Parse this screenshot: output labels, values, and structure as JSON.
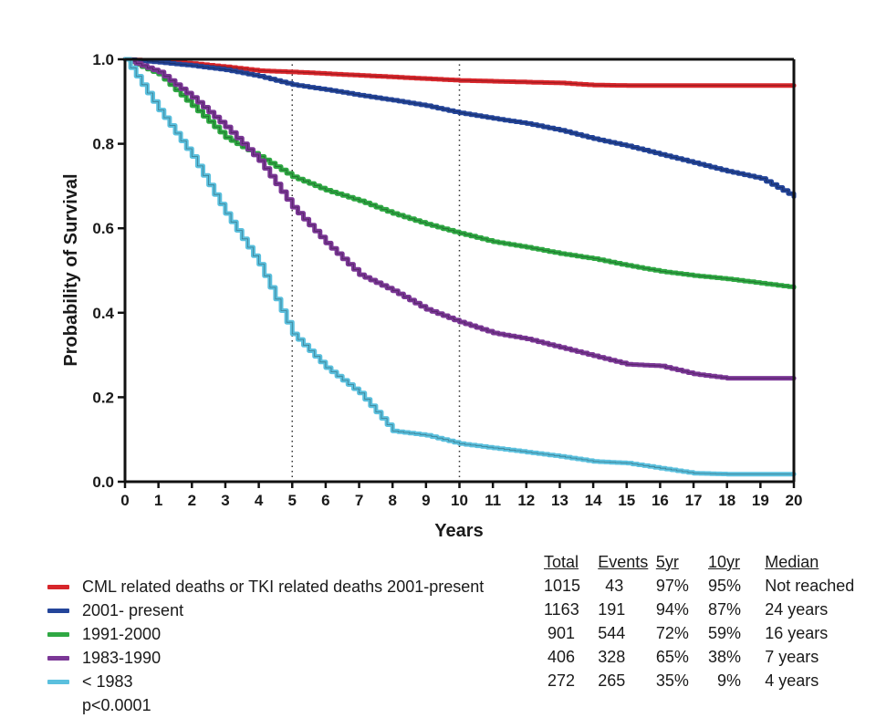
{
  "chart_data": {
    "type": "line",
    "title": "",
    "xlabel": "Years",
    "ylabel": "Probability of Survival",
    "xlim": [
      0,
      20
    ],
    "ylim": [
      0,
      1.0
    ],
    "x_ticks": [
      "0",
      "1",
      "2",
      "3",
      "4",
      "5",
      "6",
      "7",
      "8",
      "9",
      "10",
      "11",
      "12",
      "13",
      "14",
      "15",
      "16",
      "17",
      "18",
      "19",
      "20"
    ],
    "y_ticks": [
      "0.0",
      "0.2",
      "0.4",
      "0.6",
      "0.8",
      "1.0"
    ],
    "reference_lines_x": [
      5,
      10
    ],
    "grid": false,
    "legend_position": "bottom-left",
    "x": [
      0,
      1,
      2,
      3,
      4,
      5,
      6,
      7,
      8,
      9,
      10,
      11,
      12,
      13,
      14,
      15,
      16,
      17,
      18,
      19,
      20
    ],
    "series": [
      {
        "name": "CML related deaths or TKI related deaths 2001-present",
        "color": "#d7262b",
        "values": [
          1.0,
          0.995,
          0.99,
          0.982,
          0.973,
          0.97,
          0.966,
          0.962,
          0.958,
          0.954,
          0.95,
          0.948,
          0.946,
          0.944,
          0.939,
          0.938,
          0.938,
          0.938,
          0.938,
          0.938,
          0.938
        ]
      },
      {
        "name": "2001- present",
        "color": "#24459a",
        "values": [
          1.0,
          0.993,
          0.985,
          0.975,
          0.96,
          0.94,
          0.928,
          0.915,
          0.903,
          0.89,
          0.873,
          0.86,
          0.848,
          0.832,
          0.812,
          0.795,
          0.775,
          0.755,
          0.735,
          0.718,
          0.675
        ]
      },
      {
        "name": "1991-2000",
        "color": "#2fa843",
        "values": [
          1.0,
          0.965,
          0.89,
          0.815,
          0.77,
          0.722,
          0.69,
          0.665,
          0.635,
          0.61,
          0.588,
          0.568,
          0.555,
          0.54,
          0.528,
          0.512,
          0.498,
          0.488,
          0.48,
          0.47,
          0.46
        ]
      },
      {
        "name": "1983-1990",
        "color": "#7b3796",
        "values": [
          1.0,
          0.97,
          0.91,
          0.84,
          0.76,
          0.65,
          0.565,
          0.49,
          0.452,
          0.408,
          0.378,
          0.352,
          0.338,
          0.318,
          0.298,
          0.278,
          0.274,
          0.255,
          0.245,
          0.245,
          0.245
        ]
      },
      {
        "name": "<1983",
        "color": "#5bc0de",
        "values": [
          1.0,
          0.88,
          0.77,
          0.635,
          0.515,
          0.35,
          0.27,
          0.21,
          0.12,
          0.11,
          0.09,
          0.08,
          0.07,
          0.06,
          0.048,
          0.044,
          0.032,
          0.02,
          0.018,
          0.018,
          0.018
        ]
      }
    ]
  },
  "legend": {
    "items": [
      {
        "label": "CML related deaths or TKI related deaths 2001-present",
        "color": "#d7262b"
      },
      {
        "label": "2001- present",
        "color": "#24459a"
      },
      {
        "label": "1991-2000",
        "color": "#2fa843"
      },
      {
        "label": "1983-1990",
        "color": "#7b3796"
      },
      {
        "label": "< 1983",
        "color": "#5bc0de"
      }
    ],
    "p_value": "p<0.0001"
  },
  "stats_table": {
    "headers": [
      "Total",
      "Events",
      "5yr",
      "10yr",
      "Median"
    ],
    "rows": [
      [
        "1015",
        "43",
        "97%",
        "95%",
        "Not reached"
      ],
      [
        "1163",
        "191",
        "94%",
        "87%",
        "24 years"
      ],
      [
        "901",
        "544",
        "72%",
        "59%",
        "16 years"
      ],
      [
        "406",
        "328",
        "65%",
        "38%",
        "7 years"
      ],
      [
        "272",
        "265",
        "35%",
        "9%",
        "4 years"
      ]
    ]
  }
}
